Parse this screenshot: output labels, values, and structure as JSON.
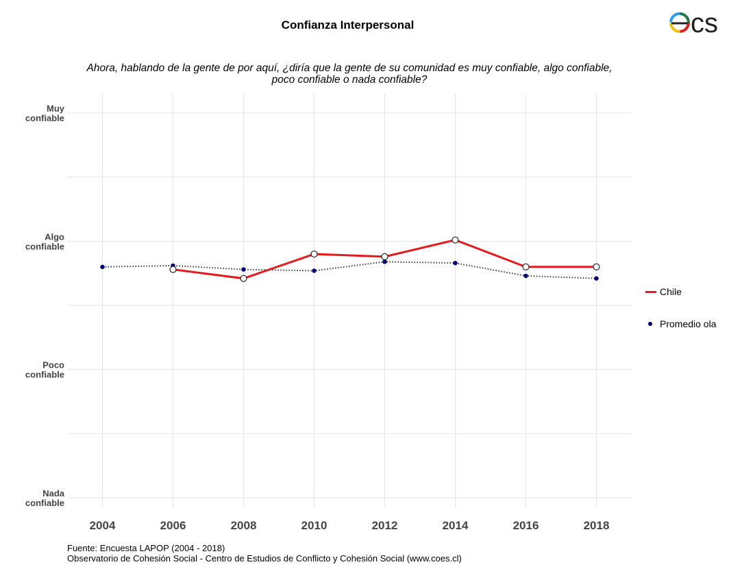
{
  "logo": {
    "text": "ecs",
    "colors": [
      "#e41a1c",
      "#f2c500",
      "#2a9df4",
      "#1f7a3a"
    ]
  },
  "chart_data": {
    "type": "line",
    "title": "Confianza Interpersonal",
    "subtitle": "Ahora, hablando de la gente de por aquí, ¿diría que la gente de su comunidad es muy confiable, algo confiable, poco confiable o nada confiable?",
    "y_labels": [
      {
        "value": 4,
        "lines": [
          "Muy",
          "confiable"
        ]
      },
      {
        "value": 3,
        "lines": [
          "Algo",
          "confiable"
        ]
      },
      {
        "value": 2,
        "lines": [
          "Poco",
          "confiable"
        ]
      },
      {
        "value": 1,
        "lines": [
          "Nada",
          "confiable"
        ]
      }
    ],
    "ylim": [
      1,
      4
    ],
    "x": [
      2004,
      2006,
      2008,
      2010,
      2012,
      2014,
      2016,
      2018
    ],
    "xlim": [
      2003,
      2019
    ],
    "series": [
      {
        "name": "Chile",
        "style": "solid-line-open-points",
        "color": "#e41a1c",
        "x": [
          2006,
          2008,
          2010,
          2012,
          2014,
          2016,
          2018
        ],
        "values": [
          2.78,
          2.71,
          2.9,
          2.88,
          3.01,
          2.8,
          2.8
        ]
      },
      {
        "name": "Promedio ola",
        "style": "dotted-line-filled-points",
        "color": "#00007f",
        "x": [
          2004,
          2006,
          2008,
          2010,
          2012,
          2014,
          2016,
          2018
        ],
        "values": [
          2.8,
          2.81,
          2.78,
          2.77,
          2.84,
          2.83,
          2.73,
          2.71
        ]
      }
    ],
    "legend": [
      "Chile",
      "Promedio ola"
    ],
    "legend_position": "right",
    "grid": true
  },
  "source": {
    "line1": "Fuente: Encuesta LAPOP (2004 - 2018)",
    "line2": "Observatorio de Cohesión Social - Centro de Estudios de Conflicto y Cohesión Social (www.coes.cl)"
  }
}
